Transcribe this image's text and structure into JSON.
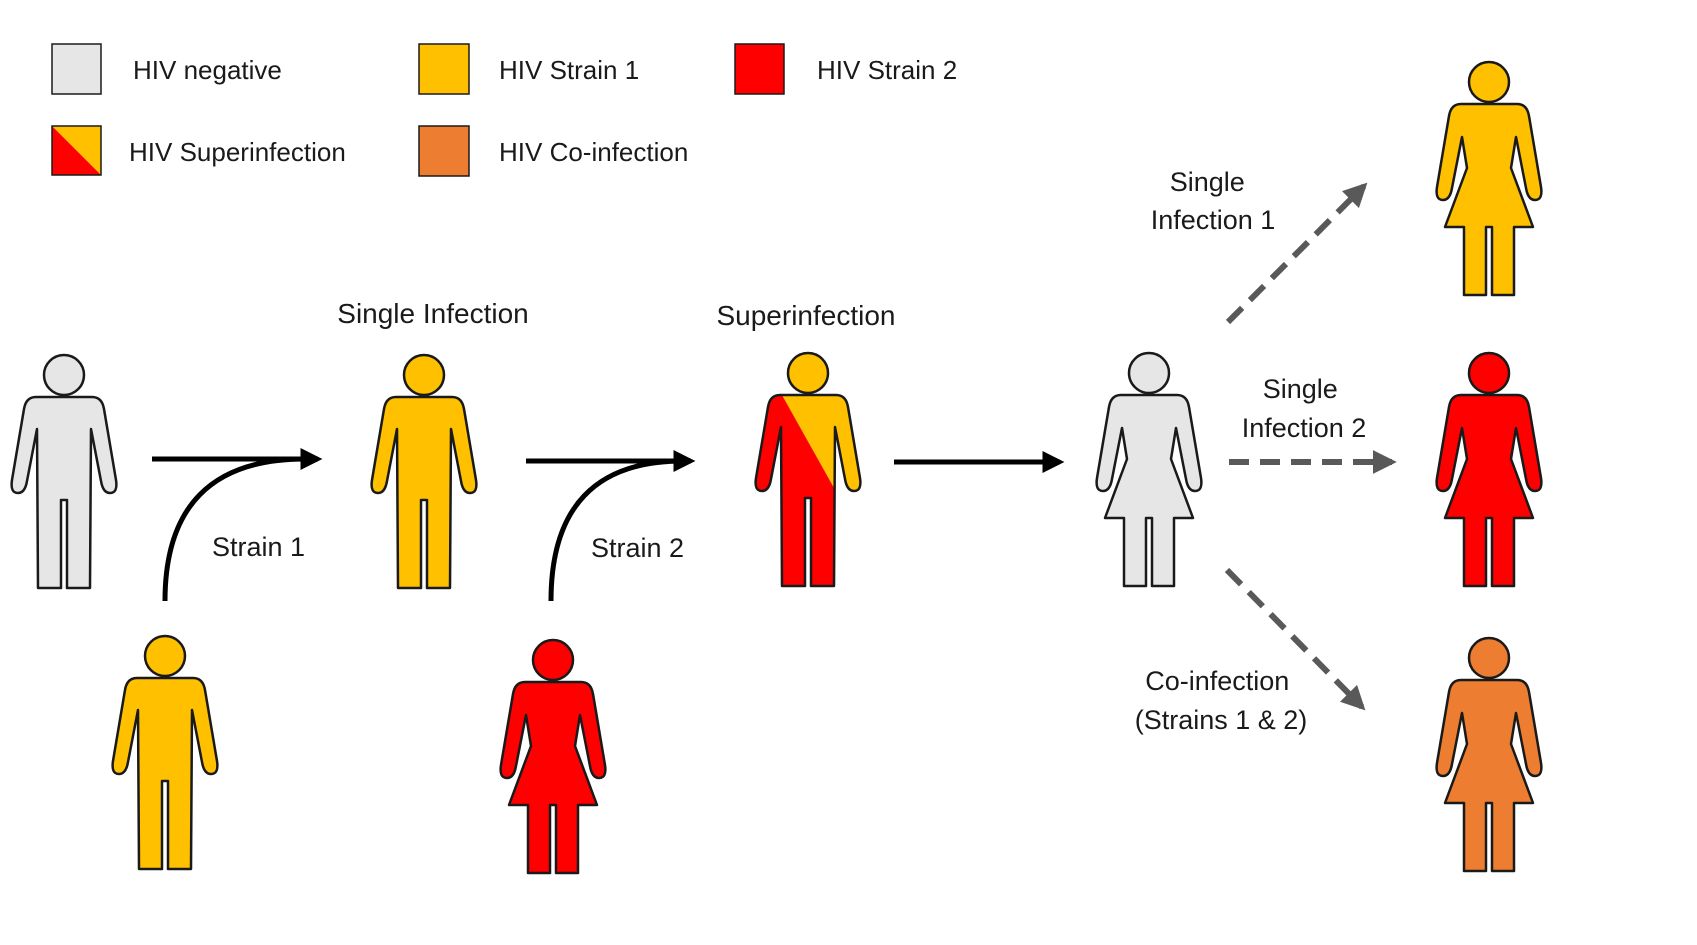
{
  "colors": {
    "hiv_negative": "#e6e6e6",
    "strain_1": "#ffc000",
    "strain_2": "#ff0000",
    "coinfection": "#ed7d31",
    "outline": "#1a1a1a",
    "solid_arrow": "#000000",
    "dashed_arrow": "#595959"
  },
  "legend": {
    "hiv_negative": "HIV negative",
    "strain_1": "HIV Strain 1",
    "strain_2": "HIV Strain 2",
    "superinfection": "HIV Superinfection",
    "coinfection": "HIV Co-infection"
  },
  "stages": {
    "single_infection": "Single Infection",
    "superinfection": "Superinfection"
  },
  "arrows": {
    "strain_1": "Strain 1",
    "strain_2": "Strain 2",
    "single_infection_1": [
      "Single",
      "Infection 1"
    ],
    "single_infection_2": [
      "Single",
      "Infection 2"
    ],
    "coinfection": [
      "Co-infection",
      "(Strains 1 & 2)"
    ]
  },
  "icons": [
    "male-figure-hiv-negative",
    "male-figure-strain-1-donor",
    "male-figure-single-infection",
    "female-figure-strain-2-donor",
    "male-figure-superinfection",
    "female-figure-hiv-negative",
    "female-figure-strain-1-outcome",
    "female-figure-strain-2-outcome",
    "female-figure-coinfection-outcome"
  ]
}
